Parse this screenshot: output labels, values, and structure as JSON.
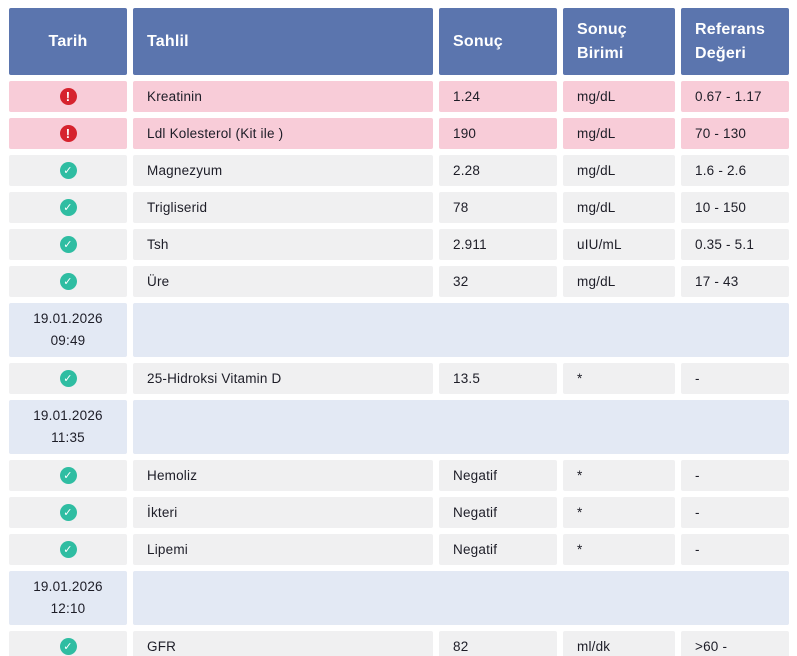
{
  "table": {
    "columns": [
      {
        "label": "Tarih"
      },
      {
        "label": "Tahlil"
      },
      {
        "label": "Sonuç"
      },
      {
        "label": "Sonuç Birimi"
      },
      {
        "label": "Referans Değeri"
      }
    ],
    "rows": [
      {
        "type": "result",
        "status": "alert",
        "name": "Kreatinin",
        "result": "1.24",
        "unit": "mg/dL",
        "reference": "0.67 - 1.17"
      },
      {
        "type": "result",
        "status": "alert",
        "name": "Ldl  Kolesterol (Kit ile )",
        "result": "190",
        "unit": "mg/dL",
        "reference": "70 - 130"
      },
      {
        "type": "result",
        "status": "ok",
        "name": "Magnezyum",
        "result": "2.28",
        "unit": "mg/dL",
        "reference": "1.6 - 2.6"
      },
      {
        "type": "result",
        "status": "ok",
        "name": "Trigliserid",
        "result": "78",
        "unit": "mg/dL",
        "reference": "10 - 150"
      },
      {
        "type": "result",
        "status": "ok",
        "name": "Tsh",
        "result": "2.911",
        "unit": "uIU/mL",
        "reference": "0.35 - 5.1"
      },
      {
        "type": "result",
        "status": "ok",
        "name": "Üre",
        "result": "32",
        "unit": "mg/dL",
        "reference": "17 - 43"
      },
      {
        "type": "date",
        "date": "19.01.2026",
        "time": "09:49"
      },
      {
        "type": "result",
        "status": "ok",
        "name": "25-Hidroksi Vitamin D",
        "result": "13.5",
        "unit": "*",
        "reference": "-"
      },
      {
        "type": "date",
        "date": "19.01.2026",
        "time": "11:35"
      },
      {
        "type": "result",
        "status": "ok",
        "name": "Hemoliz",
        "result": "Negatif",
        "unit": "*",
        "reference": "-"
      },
      {
        "type": "result",
        "status": "ok",
        "name": "İkteri",
        "result": "Negatif",
        "unit": "*",
        "reference": "-"
      },
      {
        "type": "result",
        "status": "ok",
        "name": "Lipemi",
        "result": "Negatif",
        "unit": "*",
        "reference": "-"
      },
      {
        "type": "date",
        "date": "19.01.2026",
        "time": "12:10"
      },
      {
        "type": "result",
        "status": "ok",
        "name": "GFR",
        "result": "82",
        "unit": "ml/dk",
        "reference": ">60 -"
      }
    ]
  },
  "icons": {
    "alert": "alert-icon",
    "ok": "check-icon"
  },
  "colors": {
    "header_bg": "#5b75ae",
    "alert_row_bg": "#f8ccd8",
    "normal_row_bg": "#f0f0f1",
    "date_row_bg": "#e3e9f4",
    "alert_icon": "#d6232e",
    "check_icon": "#2fbda2",
    "header_text": "#ffffff",
    "body_text": "#1d1d27"
  }
}
